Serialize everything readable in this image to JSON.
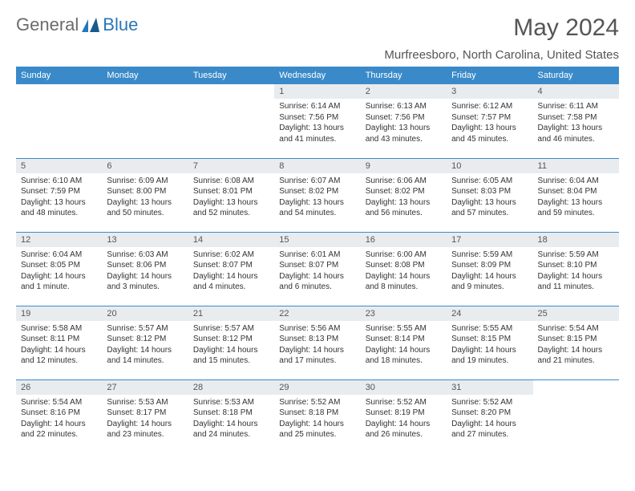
{
  "logo": {
    "general": "General",
    "blue": "Blue"
  },
  "header": {
    "month_year": "May 2024",
    "location": "Murfreesboro, North Carolina, United States"
  },
  "colors": {
    "header_bg": "#3a8ac9",
    "header_text": "#ffffff",
    "daynum_bg": "#e8ecef",
    "row_border": "#3a8ac9",
    "body_text": "#333333",
    "title_text": "#555555",
    "logo_gray": "#6b6b6b",
    "logo_blue": "#2977b8",
    "page_bg": "#ffffff"
  },
  "typography": {
    "month_fontsize": 30,
    "location_fontsize": 15,
    "weekday_fontsize": 11,
    "daynum_fontsize": 11,
    "cell_fontsize": 10
  },
  "weekdays": [
    "Sunday",
    "Monday",
    "Tuesday",
    "Wednesday",
    "Thursday",
    "Friday",
    "Saturday"
  ],
  "weeks": [
    [
      {
        "day": "",
        "sunrise": "",
        "sunset": "",
        "daylight": ""
      },
      {
        "day": "",
        "sunrise": "",
        "sunset": "",
        "daylight": ""
      },
      {
        "day": "",
        "sunrise": "",
        "sunset": "",
        "daylight": ""
      },
      {
        "day": "1",
        "sunrise": "Sunrise: 6:14 AM",
        "sunset": "Sunset: 7:56 PM",
        "daylight": "Daylight: 13 hours and 41 minutes."
      },
      {
        "day": "2",
        "sunrise": "Sunrise: 6:13 AM",
        "sunset": "Sunset: 7:56 PM",
        "daylight": "Daylight: 13 hours and 43 minutes."
      },
      {
        "day": "3",
        "sunrise": "Sunrise: 6:12 AM",
        "sunset": "Sunset: 7:57 PM",
        "daylight": "Daylight: 13 hours and 45 minutes."
      },
      {
        "day": "4",
        "sunrise": "Sunrise: 6:11 AM",
        "sunset": "Sunset: 7:58 PM",
        "daylight": "Daylight: 13 hours and 46 minutes."
      }
    ],
    [
      {
        "day": "5",
        "sunrise": "Sunrise: 6:10 AM",
        "sunset": "Sunset: 7:59 PM",
        "daylight": "Daylight: 13 hours and 48 minutes."
      },
      {
        "day": "6",
        "sunrise": "Sunrise: 6:09 AM",
        "sunset": "Sunset: 8:00 PM",
        "daylight": "Daylight: 13 hours and 50 minutes."
      },
      {
        "day": "7",
        "sunrise": "Sunrise: 6:08 AM",
        "sunset": "Sunset: 8:01 PM",
        "daylight": "Daylight: 13 hours and 52 minutes."
      },
      {
        "day": "8",
        "sunrise": "Sunrise: 6:07 AM",
        "sunset": "Sunset: 8:02 PM",
        "daylight": "Daylight: 13 hours and 54 minutes."
      },
      {
        "day": "9",
        "sunrise": "Sunrise: 6:06 AM",
        "sunset": "Sunset: 8:02 PM",
        "daylight": "Daylight: 13 hours and 56 minutes."
      },
      {
        "day": "10",
        "sunrise": "Sunrise: 6:05 AM",
        "sunset": "Sunset: 8:03 PM",
        "daylight": "Daylight: 13 hours and 57 minutes."
      },
      {
        "day": "11",
        "sunrise": "Sunrise: 6:04 AM",
        "sunset": "Sunset: 8:04 PM",
        "daylight": "Daylight: 13 hours and 59 minutes."
      }
    ],
    [
      {
        "day": "12",
        "sunrise": "Sunrise: 6:04 AM",
        "sunset": "Sunset: 8:05 PM",
        "daylight": "Daylight: 14 hours and 1 minute."
      },
      {
        "day": "13",
        "sunrise": "Sunrise: 6:03 AM",
        "sunset": "Sunset: 8:06 PM",
        "daylight": "Daylight: 14 hours and 3 minutes."
      },
      {
        "day": "14",
        "sunrise": "Sunrise: 6:02 AM",
        "sunset": "Sunset: 8:07 PM",
        "daylight": "Daylight: 14 hours and 4 minutes."
      },
      {
        "day": "15",
        "sunrise": "Sunrise: 6:01 AM",
        "sunset": "Sunset: 8:07 PM",
        "daylight": "Daylight: 14 hours and 6 minutes."
      },
      {
        "day": "16",
        "sunrise": "Sunrise: 6:00 AM",
        "sunset": "Sunset: 8:08 PM",
        "daylight": "Daylight: 14 hours and 8 minutes."
      },
      {
        "day": "17",
        "sunrise": "Sunrise: 5:59 AM",
        "sunset": "Sunset: 8:09 PM",
        "daylight": "Daylight: 14 hours and 9 minutes."
      },
      {
        "day": "18",
        "sunrise": "Sunrise: 5:59 AM",
        "sunset": "Sunset: 8:10 PM",
        "daylight": "Daylight: 14 hours and 11 minutes."
      }
    ],
    [
      {
        "day": "19",
        "sunrise": "Sunrise: 5:58 AM",
        "sunset": "Sunset: 8:11 PM",
        "daylight": "Daylight: 14 hours and 12 minutes."
      },
      {
        "day": "20",
        "sunrise": "Sunrise: 5:57 AM",
        "sunset": "Sunset: 8:12 PM",
        "daylight": "Daylight: 14 hours and 14 minutes."
      },
      {
        "day": "21",
        "sunrise": "Sunrise: 5:57 AM",
        "sunset": "Sunset: 8:12 PM",
        "daylight": "Daylight: 14 hours and 15 minutes."
      },
      {
        "day": "22",
        "sunrise": "Sunrise: 5:56 AM",
        "sunset": "Sunset: 8:13 PM",
        "daylight": "Daylight: 14 hours and 17 minutes."
      },
      {
        "day": "23",
        "sunrise": "Sunrise: 5:55 AM",
        "sunset": "Sunset: 8:14 PM",
        "daylight": "Daylight: 14 hours and 18 minutes."
      },
      {
        "day": "24",
        "sunrise": "Sunrise: 5:55 AM",
        "sunset": "Sunset: 8:15 PM",
        "daylight": "Daylight: 14 hours and 19 minutes."
      },
      {
        "day": "25",
        "sunrise": "Sunrise: 5:54 AM",
        "sunset": "Sunset: 8:15 PM",
        "daylight": "Daylight: 14 hours and 21 minutes."
      }
    ],
    [
      {
        "day": "26",
        "sunrise": "Sunrise: 5:54 AM",
        "sunset": "Sunset: 8:16 PM",
        "daylight": "Daylight: 14 hours and 22 minutes."
      },
      {
        "day": "27",
        "sunrise": "Sunrise: 5:53 AM",
        "sunset": "Sunset: 8:17 PM",
        "daylight": "Daylight: 14 hours and 23 minutes."
      },
      {
        "day": "28",
        "sunrise": "Sunrise: 5:53 AM",
        "sunset": "Sunset: 8:18 PM",
        "daylight": "Daylight: 14 hours and 24 minutes."
      },
      {
        "day": "29",
        "sunrise": "Sunrise: 5:52 AM",
        "sunset": "Sunset: 8:18 PM",
        "daylight": "Daylight: 14 hours and 25 minutes."
      },
      {
        "day": "30",
        "sunrise": "Sunrise: 5:52 AM",
        "sunset": "Sunset: 8:19 PM",
        "daylight": "Daylight: 14 hours and 26 minutes."
      },
      {
        "day": "31",
        "sunrise": "Sunrise: 5:52 AM",
        "sunset": "Sunset: 8:20 PM",
        "daylight": "Daylight: 14 hours and 27 minutes."
      },
      {
        "day": "",
        "sunrise": "",
        "sunset": "",
        "daylight": ""
      }
    ]
  ]
}
